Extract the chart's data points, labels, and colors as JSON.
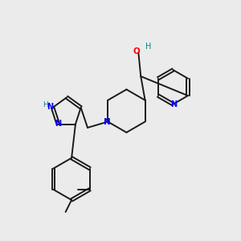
{
  "bg_color": "#ebebeb",
  "bond_color": "#1a1a1a",
  "N_color": "#0000ff",
  "O_color": "#ff0000",
  "H_color": "#008080",
  "lw": 1.4,
  "fig_size": [
    3.0,
    3.0
  ],
  "dpi": 100,
  "xlim": [
    0,
    10
  ],
  "ylim": [
    0,
    10
  ]
}
